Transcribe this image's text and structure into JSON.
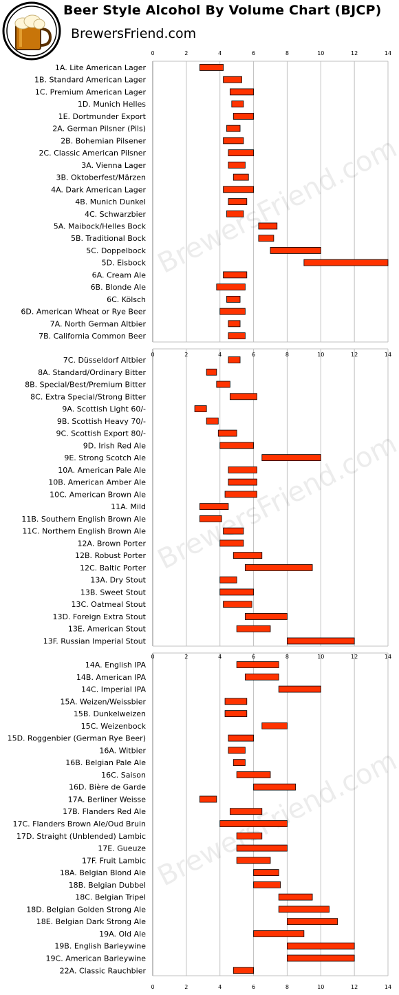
{
  "header": {
    "title": "Beer Style Alcohol By Volume Chart (BJCP)",
    "subtitle": "BrewersFriend.com",
    "watermark": "BrewersFriend.com",
    "logo_icon": "beer-mug-icon"
  },
  "colors": {
    "bar_fill": "#ff3300",
    "bar_stroke": "#000000",
    "grid": "#c0c0c0",
    "logo_ring": "#000000",
    "beer": "#c8750a",
    "foam": "#fff6d8"
  },
  "chart_data": [
    {
      "type": "bar",
      "orientation": "horizontal",
      "xlim": [
        0,
        14
      ],
      "xticks": [
        "0",
        "2",
        "4",
        "6",
        "8",
        "10",
        "12",
        "14"
      ],
      "grid": true,
      "categories": [
        "1A. Lite American Lager",
        "1B. Standard American Lager",
        "1C. Premium American Lager",
        "1D. Munich Helles",
        "1E. Dortmunder Export",
        "2A. German Pilsner (Pils)",
        "2B. Bohemian Pilsener",
        "2C. Classic American Pilsner",
        "3A. Vienna Lager",
        "3B. Oktoberfest/Märzen",
        "4A. Dark American Lager",
        "4B. Munich Dunkel",
        "4C. Schwarzbier",
        "5A. Maibock/Helles Bock",
        "5B. Traditional Bock",
        "5C. Doppelbock",
        "5D. Eisbock",
        "6A. Cream Ale",
        "6B. Blonde Ale",
        "6C. Kölsch",
        "6D. American Wheat or Rye Beer",
        "7A. North German Altbier",
        "7B. California Common Beer"
      ],
      "ranges": [
        [
          2.8,
          4.2
        ],
        [
          4.2,
          5.3
        ],
        [
          4.6,
          6.0
        ],
        [
          4.7,
          5.4
        ],
        [
          4.8,
          6.0
        ],
        [
          4.4,
          5.2
        ],
        [
          4.2,
          5.4
        ],
        [
          4.5,
          6.0
        ],
        [
          4.5,
          5.5
        ],
        [
          4.8,
          5.7
        ],
        [
          4.2,
          6.0
        ],
        [
          4.5,
          5.6
        ],
        [
          4.4,
          5.4
        ],
        [
          6.3,
          7.4
        ],
        [
          6.3,
          7.2
        ],
        [
          7.0,
          10.0
        ],
        [
          9.0,
          14.0
        ],
        [
          4.2,
          5.6
        ],
        [
          3.8,
          5.5
        ],
        [
          4.4,
          5.2
        ],
        [
          4.0,
          5.5
        ],
        [
          4.5,
          5.2
        ],
        [
          4.5,
          5.5
        ]
      ]
    },
    {
      "type": "bar",
      "orientation": "horizontal",
      "xlim": [
        0,
        14
      ],
      "xticks": [
        "0",
        "2",
        "4",
        "6",
        "8",
        "10",
        "12",
        "14"
      ],
      "grid": true,
      "categories": [
        "7C. Düsseldorf Altbier",
        "8A. Standard/Ordinary Bitter",
        "8B. Special/Best/Premium Bitter",
        "8C. Extra Special/Strong Bitter",
        "9A. Scottish Light 60/-",
        "9B. Scottish Heavy 70/-",
        "9C. Scottish Export 80/-",
        "9D. Irish Red Ale",
        "9E. Strong Scotch Ale",
        "10A. American Pale Ale",
        "10B. American Amber Ale",
        "10C. American Brown Ale",
        "11A. Mild",
        "11B. Southern English Brown Ale",
        "11C. Northern English Brown Ale",
        "12A. Brown Porter",
        "12B. Robust Porter",
        "12C. Baltic Porter",
        "13A. Dry Stout",
        "13B. Sweet Stout",
        "13C. Oatmeal Stout",
        "13D. Foreign Extra Stout",
        "13E. American Stout",
        "13F. Russian Imperial Stout"
      ],
      "ranges": [
        [
          4.5,
          5.2
        ],
        [
          3.2,
          3.8
        ],
        [
          3.8,
          4.6
        ],
        [
          4.6,
          6.2
        ],
        [
          2.5,
          3.2
        ],
        [
          3.2,
          3.9
        ],
        [
          3.9,
          5.0
        ],
        [
          4.0,
          6.0
        ],
        [
          6.5,
          10.0
        ],
        [
          4.5,
          6.2
        ],
        [
          4.5,
          6.2
        ],
        [
          4.3,
          6.2
        ],
        [
          2.8,
          4.5
        ],
        [
          2.8,
          4.1
        ],
        [
          4.2,
          5.4
        ],
        [
          4.0,
          5.4
        ],
        [
          4.8,
          6.5
        ],
        [
          5.5,
          9.5
        ],
        [
          4.0,
          5.0
        ],
        [
          4.0,
          6.0
        ],
        [
          4.2,
          5.9
        ],
        [
          5.5,
          8.0
        ],
        [
          5.0,
          7.0
        ],
        [
          8.0,
          12.0
        ]
      ]
    },
    {
      "type": "bar",
      "orientation": "horizontal",
      "xlim": [
        0,
        14
      ],
      "xticks": [
        "0",
        "2",
        "4",
        "6",
        "8",
        "10",
        "12",
        "14"
      ],
      "grid": true,
      "categories": [
        "14A. English IPA",
        "14B. American IPA",
        "14C. Imperial IPA",
        "15A. Weizen/Weissbier",
        "15B. Dunkelweizen",
        "15C. Weizenbock",
        "15D. Roggenbier (German Rye Beer)",
        "16A. Witbier",
        "16B. Belgian Pale Ale",
        "16C. Saison",
        "16D. Bière de Garde",
        "17A. Berliner Weisse",
        "17B. Flanders Red Ale",
        "17C. Flanders Brown Ale/Oud Bruin",
        "17D. Straight (Unblended) Lambic",
        "17E. Gueuze",
        "17F. Fruit Lambic",
        "18A. Belgian Blond Ale",
        "18B. Belgian Dubbel",
        "18C. Belgian Tripel",
        "18D. Belgian Golden Strong Ale",
        "18E. Belgian Dark Strong Ale",
        "19A. Old Ale",
        "19B. English Barleywine",
        "19C. American Barleywine",
        "22A. Classic Rauchbier"
      ],
      "ranges": [
        [
          5.0,
          7.5
        ],
        [
          5.5,
          7.5
        ],
        [
          7.5,
          10.0
        ],
        [
          4.3,
          5.6
        ],
        [
          4.3,
          5.6
        ],
        [
          6.5,
          8.0
        ],
        [
          4.5,
          6.0
        ],
        [
          4.5,
          5.5
        ],
        [
          4.8,
          5.5
        ],
        [
          5.0,
          7.0
        ],
        [
          6.0,
          8.5
        ],
        [
          2.8,
          3.8
        ],
        [
          4.6,
          6.5
        ],
        [
          4.0,
          8.0
        ],
        [
          5.0,
          6.5
        ],
        [
          5.0,
          8.0
        ],
        [
          5.0,
          7.0
        ],
        [
          6.0,
          7.5
        ],
        [
          6.0,
          7.6
        ],
        [
          7.5,
          9.5
        ],
        [
          7.5,
          10.5
        ],
        [
          8.0,
          11.0
        ],
        [
          6.0,
          9.0
        ],
        [
          8.0,
          12.0
        ],
        [
          8.0,
          12.0
        ],
        [
          4.8,
          6.0
        ]
      ]
    }
  ]
}
